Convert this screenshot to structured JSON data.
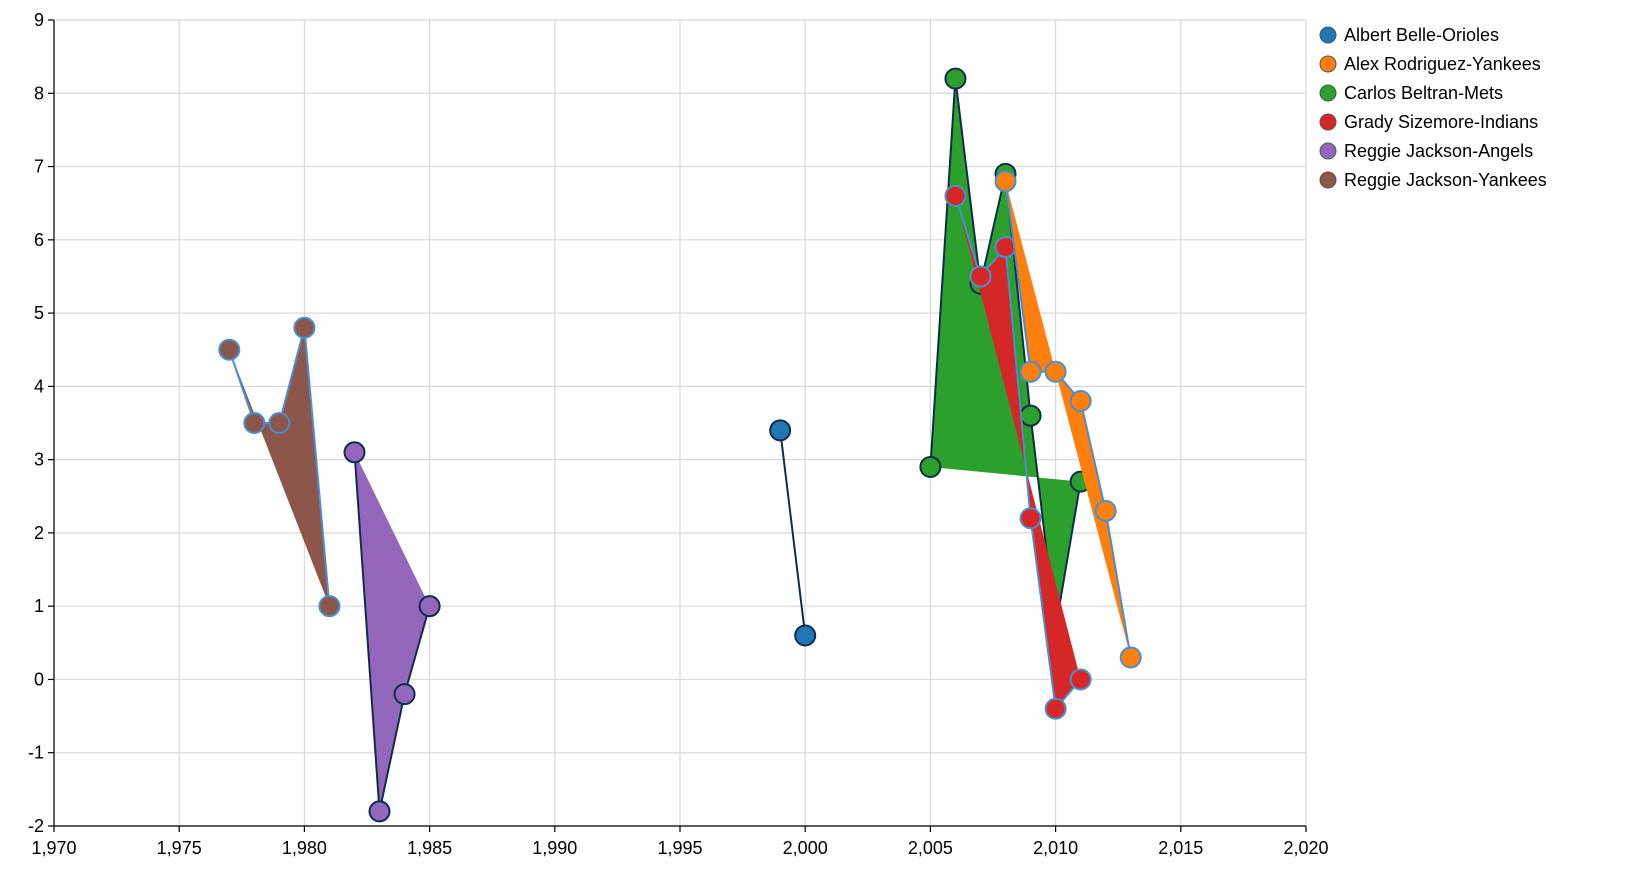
{
  "chart_data": {
    "type": "line",
    "title": "",
    "xlabel": "",
    "ylabel": "",
    "xlim": [
      1970,
      2020
    ],
    "ylim": [
      -2,
      9
    ],
    "x_ticks": [
      1970,
      1975,
      1980,
      1985,
      1990,
      1995,
      2000,
      2005,
      2010,
      2015,
      2020
    ],
    "x_tick_labels": [
      "1,970",
      "1,975",
      "1,980",
      "1,985",
      "1,990",
      "1,995",
      "2,000",
      "2,005",
      "2,010",
      "2,015",
      "2,020"
    ],
    "y_ticks": [
      -2,
      -1,
      0,
      1,
      2,
      3,
      4,
      5,
      6,
      7,
      8,
      9
    ],
    "y_tick_labels": [
      "-2",
      "-1",
      "0",
      "1",
      "2",
      "3",
      "4",
      "5",
      "6",
      "7",
      "8",
      "9"
    ],
    "grid": true,
    "legend_position": "top-right",
    "series": [
      {
        "name": "Albert Belle-Orioles",
        "color": "#1f77b4",
        "stroke": "#0f2d4d",
        "filled": false,
        "x": [
          1999,
          2000
        ],
        "y": [
          3.4,
          0.6
        ]
      },
      {
        "name": "Alex Rodriguez-Yankees",
        "color": "#ff7f0e",
        "stroke": "#4a8fcb",
        "filled": true,
        "x": [
          2008,
          2009,
          2010,
          2011,
          2012,
          2013
        ],
        "y": [
          6.8,
          4.2,
          4.2,
          3.8,
          2.3,
          0.3
        ]
      },
      {
        "name": "Carlos Beltran-Mets",
        "color": "#2ca02c",
        "stroke": "#0f2d4d",
        "filled": true,
        "x": [
          2005,
          2006,
          2007,
          2008,
          2009,
          2010,
          2011
        ],
        "y": [
          2.9,
          8.2,
          5.4,
          6.9,
          3.6,
          0.7,
          2.7
        ]
      },
      {
        "name": "Grady Sizemore-Indians",
        "color": "#d62728",
        "stroke": "#4a8fcb",
        "filled": true,
        "x": [
          2006,
          2007,
          2008,
          2009,
          2010,
          2011
        ],
        "y": [
          6.6,
          5.5,
          5.9,
          2.2,
          -0.4,
          0.0
        ]
      },
      {
        "name": "Reggie Jackson-Angels",
        "color": "#9467bd",
        "stroke": "#0f2d4d",
        "filled": true,
        "x": [
          1982,
          1983,
          1984,
          1985
        ],
        "y": [
          3.1,
          -1.8,
          -0.2,
          1.0
        ]
      },
      {
        "name": "Reggie Jackson-Yankees",
        "color": "#8c564b",
        "stroke": "#4a8fcb",
        "filled": true,
        "x": [
          1977,
          1978,
          1979,
          1980,
          1981
        ],
        "y": [
          4.5,
          3.5,
          3.5,
          4.8,
          1.0
        ]
      }
    ]
  }
}
